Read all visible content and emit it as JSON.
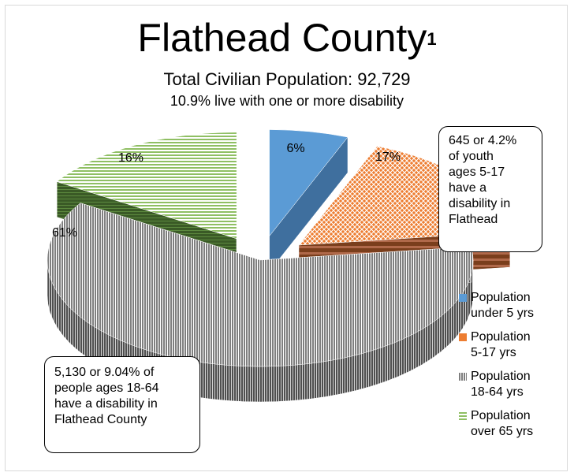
{
  "chart_data": {
    "type": "pie",
    "title": "Flathead County",
    "title_superscript": "1",
    "subtitle": "Total Civilian Population: 92,729",
    "subtitle2": "10.9% live with one or more disability",
    "categories": [
      "Population under 5 yrs",
      "Population 5-17 yrs",
      "Population 18-64 yrs",
      "Population over 65 yrs"
    ],
    "values": [
      6,
      17,
      61,
      16
    ],
    "data_labels": [
      "6%",
      "17%",
      "61%",
      "16%"
    ],
    "colors": [
      "#5b9bd5",
      "#ed7d31",
      "#a5a5a5",
      "#70ad47"
    ],
    "legend": [
      {
        "line1": "Population",
        "line2": "under 5 yrs",
        "color": "#5b9bd5"
      },
      {
        "line1": "Population",
        "line2": "5-17 yrs",
        "color": "#ed7d31"
      },
      {
        "line1": "Population",
        "line2": "18-64 yrs",
        "color": "#a5a5a5"
      },
      {
        "line1": "Population",
        "line2": "over 65 yrs",
        "color": "#70ad47"
      }
    ],
    "legend_position": "right",
    "style": "3d-exploded"
  },
  "callouts": {
    "youth": [
      "645 or 4.2%",
      "of youth",
      "ages 5-17",
      "have a",
      "disability in",
      "Flathead"
    ],
    "adults": [
      "5,130 or 9.04% of",
      "people ages 18-64",
      "have a disability in",
      "Flathead County"
    ]
  }
}
